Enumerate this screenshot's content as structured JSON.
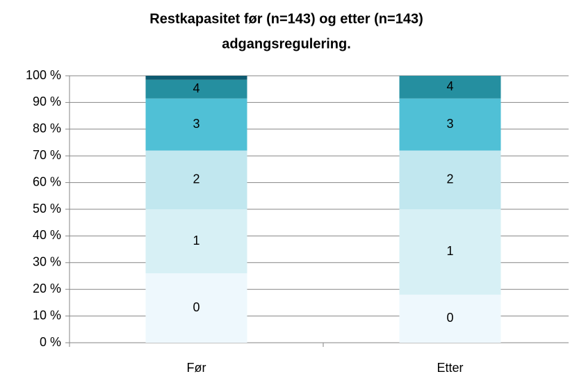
{
  "chart_data": {
    "type": "stacked_bar",
    "title": [
      "Restkapasitet før (n=143) og etter (n=143)",
      "adgangsregulering."
    ],
    "categories": [
      "Før",
      "Etter"
    ],
    "series": [
      {
        "name": "0",
        "color": "#eef8fd",
        "values": [
          26,
          18
        ]
      },
      {
        "name": "1",
        "color": "#d7f0f5",
        "values": [
          24,
          32
        ]
      },
      {
        "name": "2",
        "color": "#c1e7ef",
        "values": [
          22,
          22
        ]
      },
      {
        "name": "3",
        "color": "#50c0d6",
        "values": [
          19.5,
          19.5
        ]
      },
      {
        "name": "4",
        "color": "#258fa0",
        "values": [
          7,
          8.5
        ]
      },
      {
        "name": null,
        "color": "#0d5a70",
        "values": [
          1.5,
          0
        ]
      }
    ],
    "ylim": [
      0,
      100
    ],
    "yticks": [
      {
        "value": 0,
        "label": "0 %"
      },
      {
        "value": 10,
        "label": "10 %"
      },
      {
        "value": 20,
        "label": "20 %"
      },
      {
        "value": 30,
        "label": "30 %"
      },
      {
        "value": 40,
        "label": "40 %"
      },
      {
        "value": 50,
        "label": "50 %"
      },
      {
        "value": 60,
        "label": "60 %"
      },
      {
        "value": 70,
        "label": "70 %"
      },
      {
        "value": 80,
        "label": "80 %"
      },
      {
        "value": 90,
        "label": "90 %"
      },
      {
        "value": 100,
        "label": "100 %"
      }
    ],
    "grid": true
  }
}
